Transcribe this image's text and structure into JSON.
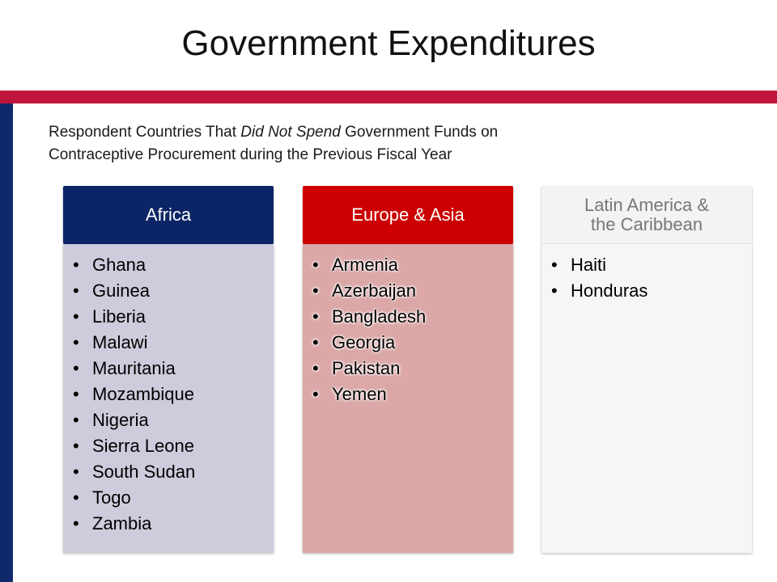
{
  "title": "Government Expenditures",
  "subtitle": {
    "prefix": "Respondent Countries That ",
    "emphasis": "Did Not Spend",
    "suffix": " Government Funds on",
    "line2": "Contraceptive Procurement during the Previous Fiscal Year"
  },
  "colors": {
    "title_bar": "#c0163b",
    "side_bar": "#0f2a6b",
    "africa_header_bg": "#0c2566",
    "africa_header_text": "#ffffff",
    "africa_body_bg": "#ccccdc",
    "europe_header_bg": "#cc0000",
    "europe_header_text": "#ffffff",
    "europe_body_bg": "#dba7a7",
    "latam_header_bg": "#f3f3f3",
    "latam_header_text": "#777777",
    "latam_body_bg": "#f6f6f6"
  },
  "columns": {
    "africa": {
      "header": "Africa",
      "items": [
        "Ghana",
        "Guinea",
        "Liberia",
        "Malawi",
        "Mauritania",
        "Mozambique",
        "Nigeria",
        "Sierra Leone",
        "South Sudan",
        "Togo",
        "Zambia"
      ]
    },
    "europe": {
      "header": "Europe & Asia",
      "items": [
        "Armenia",
        "Azerbaijan",
        "Bangladesh",
        "Georgia",
        "Pakistan",
        "Yemen"
      ]
    },
    "latam": {
      "header_line1": "Latin America &",
      "header_line2": "the Caribbean",
      "items": [
        "Haiti",
        "Honduras"
      ]
    }
  }
}
